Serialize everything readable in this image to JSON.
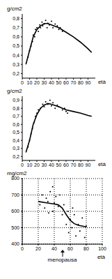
{
  "chart_data": [
    {
      "type": "scatter",
      "y_label": "g/cm2",
      "x_label": "età",
      "grid": false,
      "xlim": [
        0,
        100
      ],
      "xticks": [
        0,
        10,
        20,
        30,
        40,
        50,
        60,
        70,
        80,
        90
      ],
      "ylim": [
        0.15,
        0.85
      ],
      "yticks": [
        {
          "value": 0.2,
          "label": "0,2"
        },
        {
          "value": 0.3,
          "label": "0,3"
        },
        {
          "value": 0.4,
          "label": "0,4"
        },
        {
          "value": 0.5,
          "label": "0,5"
        },
        {
          "value": 0.6,
          "label": "0,6"
        },
        {
          "value": 0.7,
          "label": "0,7"
        },
        {
          "value": 0.8,
          "label": "0,8"
        }
      ],
      "series": [
        {
          "type": "scatter",
          "color": "#000000",
          "marker": "dot",
          "x": [
            8,
            10,
            12,
            14,
            15,
            17,
            18,
            20,
            22,
            24,
            25,
            27,
            28,
            30,
            32,
            34,
            35,
            37,
            40,
            42,
            45,
            48,
            50,
            52,
            55
          ],
          "values": [
            0.38,
            0.45,
            0.5,
            0.55,
            0.62,
            0.6,
            0.68,
            0.7,
            0.66,
            0.73,
            0.7,
            0.76,
            0.72,
            0.74,
            0.78,
            0.7,
            0.75,
            0.73,
            0.77,
            0.7,
            0.74,
            0.72,
            0.68,
            0.7,
            0.66
          ]
        },
        {
          "type": "line",
          "color": "#000000",
          "line_style": "solid",
          "x": [
            5,
            10,
            15,
            20,
            25,
            30,
            35,
            40,
            50,
            60,
            70,
            80,
            90,
            95
          ],
          "values": [
            0.3,
            0.45,
            0.6,
            0.68,
            0.72,
            0.745,
            0.745,
            0.73,
            0.7,
            0.65,
            0.6,
            0.54,
            0.47,
            0.43
          ]
        }
      ]
    },
    {
      "type": "scatter",
      "y_label": "g/cm2",
      "x_label": "età",
      "grid": false,
      "xlim": [
        0,
        100
      ],
      "xticks": [
        0,
        10,
        20,
        30,
        40,
        50,
        60,
        70,
        80,
        90
      ],
      "ylim": [
        0.15,
        0.95
      ],
      "yticks": [
        {
          "value": 0.2,
          "label": "0,2"
        },
        {
          "value": 0.3,
          "label": "0,3"
        },
        {
          "value": 0.4,
          "label": "0,4"
        },
        {
          "value": 0.5,
          "label": "0,5"
        },
        {
          "value": 0.6,
          "label": "0,6"
        },
        {
          "value": 0.7,
          "label": "0,7"
        },
        {
          "value": 0.8,
          "label": "0,8"
        },
        {
          "value": 0.9,
          "label": "0,9"
        }
      ],
      "series": [
        {
          "type": "scatter",
          "color": "#000000",
          "marker": "dot",
          "x": [
            8,
            10,
            12,
            14,
            16,
            18,
            20,
            22,
            25,
            28,
            30,
            32,
            35,
            38,
            40,
            42,
            45,
            48,
            50,
            55,
            58,
            60,
            62
          ],
          "values": [
            0.32,
            0.4,
            0.48,
            0.55,
            0.62,
            0.7,
            0.74,
            0.78,
            0.8,
            0.85,
            0.82,
            0.88,
            0.85,
            0.9,
            0.83,
            0.87,
            0.8,
            0.84,
            0.82,
            0.78,
            0.8,
            0.76,
            0.74
          ]
        },
        {
          "type": "line",
          "color": "#000000",
          "line_style": "solid",
          "x": [
            5,
            10,
            15,
            20,
            25,
            30,
            35,
            40,
            50,
            60,
            70,
            80,
            90,
            95
          ],
          "values": [
            0.25,
            0.4,
            0.6,
            0.72,
            0.8,
            0.84,
            0.86,
            0.85,
            0.82,
            0.78,
            0.76,
            0.74,
            0.71,
            0.7
          ]
        }
      ]
    },
    {
      "type": "scatter",
      "y_label": "mg/cm2",
      "x_label": "età",
      "grid": true,
      "xlim": [
        0,
        100
      ],
      "xticks": [
        0,
        20,
        40,
        60,
        80,
        100
      ],
      "ylim": [
        400,
        800
      ],
      "yticks": [
        400,
        500,
        600,
        700,
        800
      ],
      "annotations": [
        {
          "text": "menopausa",
          "x": 50
        }
      ],
      "series": [
        {
          "type": "scatter",
          "color": "#000000",
          "marker": "dot",
          "x": [
            22,
            25,
            28,
            30,
            32,
            33,
            35,
            38,
            38,
            40,
            42,
            45,
            47,
            50,
            52,
            55,
            57,
            58,
            60,
            62,
            63,
            65,
            67,
            70,
            72,
            75,
            78,
            80
          ],
          "values": [
            640,
            700,
            620,
            680,
            660,
            590,
            720,
            600,
            750,
            650,
            690,
            630,
            700,
            580,
            640,
            520,
            600,
            470,
            550,
            500,
            620,
            580,
            450,
            520,
            480,
            560,
            440,
            510
          ]
        },
        {
          "type": "line",
          "color": "#000000",
          "line_style": "solid",
          "x": [
            20,
            30,
            40,
            45,
            50,
            55,
            60,
            65,
            70,
            80
          ],
          "values": [
            660,
            652,
            645,
            640,
            620,
            580,
            545,
            525,
            515,
            505
          ]
        }
      ]
    }
  ]
}
